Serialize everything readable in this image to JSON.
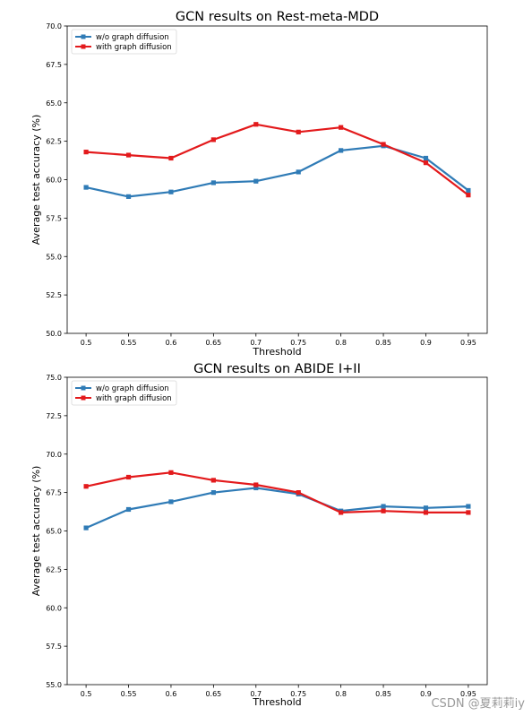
{
  "watermark": "CSDN @夏莉莉iy",
  "chart_data": [
    {
      "type": "line",
      "title": "GCN results on Rest-meta-MDD",
      "xlabel": "Threshold",
      "ylabel": "Average test accuracy (%)",
      "categories": [
        "0.5",
        "0.55",
        "0.6",
        "0.65",
        "0.7",
        "0.75",
        "0.8",
        "0.85",
        "0.9",
        "0.95"
      ],
      "ylim": [
        50.0,
        70.0
      ],
      "yticks": [
        "50.0",
        "52.5",
        "55.0",
        "57.5",
        "60.0",
        "62.5",
        "65.0",
        "67.5",
        "70.0"
      ],
      "legend_position": "upper left",
      "grid": false,
      "series": [
        {
          "name": "w/o graph diffusion",
          "color": "#2f7bb6",
          "values": [
            59.5,
            58.9,
            59.2,
            59.8,
            59.9,
            60.5,
            61.9,
            62.2,
            61.4,
            59.3
          ]
        },
        {
          "name": "with graph diffusion",
          "color": "#e31a1c",
          "values": [
            61.8,
            61.6,
            61.4,
            62.6,
            63.6,
            63.1,
            63.4,
            62.3,
            61.1,
            59.0
          ]
        }
      ]
    },
    {
      "type": "line",
      "title": "GCN results on ABIDE I+II",
      "xlabel": "Threshold",
      "ylabel": "Average test accuracy (%)",
      "categories": [
        "0.5",
        "0.55",
        "0.6",
        "0.65",
        "0.7",
        "0.75",
        "0.8",
        "0.85",
        "0.9",
        "0.95"
      ],
      "ylim": [
        55.0,
        75.0
      ],
      "yticks": [
        "55.0",
        "57.5",
        "60.0",
        "62.5",
        "65.0",
        "67.5",
        "70.0",
        "72.5",
        "75.0"
      ],
      "legend_position": "upper left",
      "grid": false,
      "series": [
        {
          "name": "w/o graph diffusion",
          "color": "#2f7bb6",
          "values": [
            65.2,
            66.4,
            66.9,
            67.5,
            67.8,
            67.4,
            66.3,
            66.6,
            66.5,
            66.6
          ]
        },
        {
          "name": "with graph diffusion",
          "color": "#e31a1c",
          "values": [
            67.9,
            68.5,
            68.8,
            68.3,
            68.0,
            67.5,
            66.2,
            66.3,
            66.2,
            66.2
          ]
        }
      ]
    }
  ]
}
